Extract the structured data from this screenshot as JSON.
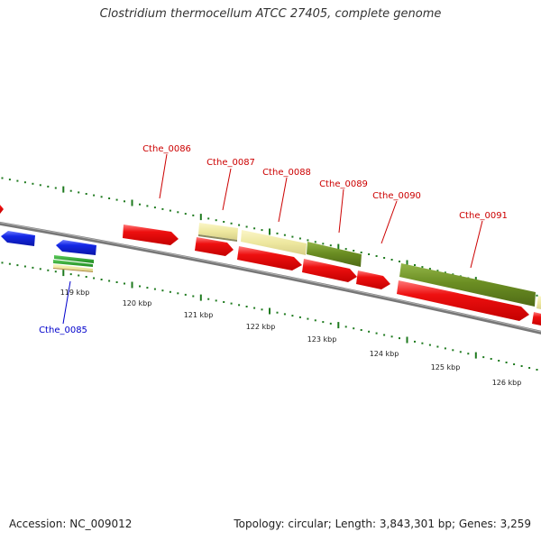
{
  "title": "Clostridium thermocellum ATCC 27405, complete genome",
  "footer": {
    "accession": "Accession: NC_009012",
    "summary": "Topology: circular; Length: 3,843,301 bp; Genes: 3,259"
  },
  "colors": {
    "backbone": "#8a8a8a",
    "tick_green": "#1e7a1e",
    "gene_red": "#e8141e",
    "gene_blue": "#1428e6",
    "gene_yellow": "#eee8a0",
    "gene_olive": "#6b8e23",
    "label_red": "#cc0000",
    "label_blue": "#0000cc"
  },
  "kbp_labels": [
    "119 kbp",
    "120 kbp",
    "121 kbp",
    "122 kbp",
    "123 kbp",
    "124 kbp",
    "125 kbp",
    "126 kbp"
  ],
  "gene_labels": [
    {
      "name": "Cthe_0085",
      "color": "blue"
    },
    {
      "name": "Cthe_0086",
      "color": "red"
    },
    {
      "name": "Cthe_0087",
      "color": "red"
    },
    {
      "name": "Cthe_0088",
      "color": "red"
    },
    {
      "name": "Cthe_0089",
      "color": "red"
    },
    {
      "name": "Cthe_0090",
      "color": "red"
    },
    {
      "name": "Cthe_0091",
      "color": "red"
    }
  ]
}
